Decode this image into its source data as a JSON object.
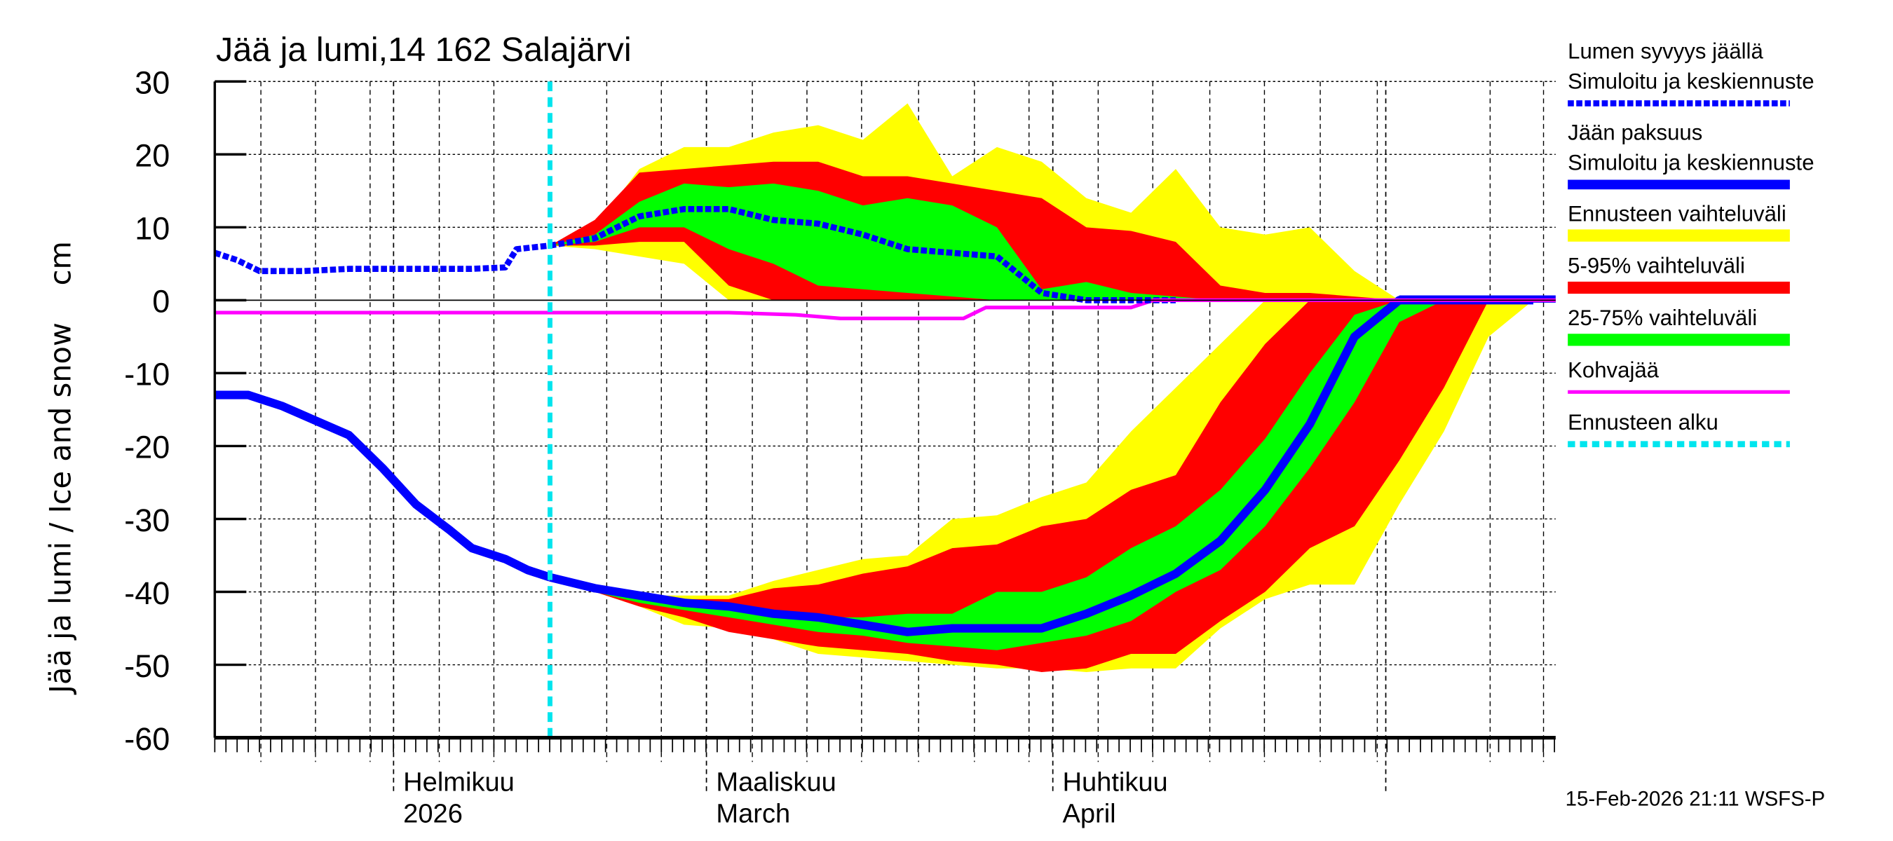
{
  "chart_data": {
    "type": "area",
    "title": "Jää ja lumi,14 162 Salajärvi",
    "ylabel": "Jää ja lumi / Ice and snow    cm",
    "ylim": [
      -60,
      30
    ],
    "yticks": [
      "30",
      "20",
      "10",
      "0",
      "-10",
      "-20",
      "-30",
      "-40",
      "-50",
      "-60"
    ],
    "xlim": [
      "2026-01-16",
      "2026-05-16"
    ],
    "x_month_labels": [
      {
        "date": "2026-02-01",
        "line1": "Helmikuu",
        "line2": "2026"
      },
      {
        "date": "2026-03-01",
        "line1": "Maaliskuu",
        "line2": "March"
      },
      {
        "date": "2026-04-01",
        "line1": "Huhtikuu",
        "line2": "April"
      }
    ],
    "grid": true,
    "legend_position": "right",
    "forecast_start": "2026-02-15",
    "forecast_dates": [
      "2026-02-15",
      "2026-02-19",
      "2026-02-23",
      "2026-02-27",
      "2026-03-03",
      "2026-03-07",
      "2026-03-11",
      "2026-03-15",
      "2026-03-19",
      "2026-03-23",
      "2026-03-27",
      "2026-03-31",
      "2026-04-04",
      "2026-04-08",
      "2026-04-12",
      "2026-04-16",
      "2026-04-20",
      "2026-04-24",
      "2026-04-28",
      "2026-05-02",
      "2026-05-06",
      "2026-05-10",
      "2026-05-14"
    ],
    "snow": {
      "history": {
        "x": [
          "2026-01-16",
          "2026-01-18",
          "2026-01-20",
          "2026-01-24",
          "2026-01-28",
          "2026-02-03",
          "2026-02-08",
          "2026-02-11",
          "2026-02-12",
          "2026-02-15"
        ],
        "y": [
          6.5,
          5.5,
          4,
          4,
          4.3,
          4.3,
          4.3,
          4.5,
          7,
          7.5
        ]
      },
      "median": [
        7.5,
        8.5,
        11.5,
        12.5,
        12.5,
        11,
        10.5,
        9,
        7,
        6.5,
        6,
        1,
        0,
        0,
        0,
        0,
        0,
        0,
        0,
        0,
        0,
        0,
        0
      ],
      "range_upper": [
        7.5,
        10,
        18,
        21,
        21,
        23,
        24,
        22,
        27,
        17,
        21,
        19,
        14,
        12,
        18,
        10,
        9,
        10,
        4,
        0,
        0,
        0,
        0
      ],
      "range_lower": [
        7.5,
        7,
        6,
        5,
        0,
        0,
        0,
        0,
        0,
        0,
        0,
        0,
        0,
        0,
        0,
        0,
        0,
        0,
        0,
        0,
        0,
        0,
        0
      ],
      "p95": [
        7.5,
        11,
        17.5,
        18,
        18.5,
        19,
        19,
        17,
        17,
        16,
        15,
        14,
        10,
        9.5,
        8,
        2,
        1,
        1,
        0.5,
        0,
        0,
        0,
        0
      ],
      "p5": [
        7.5,
        7.5,
        8,
        8,
        2,
        0,
        0,
        0,
        0,
        0,
        0,
        0,
        0,
        0,
        0,
        0,
        0,
        0,
        0,
        0,
        0,
        0,
        0
      ],
      "p75": [
        7.5,
        9,
        13.5,
        16,
        15.5,
        16,
        15,
        13,
        14,
        13,
        10,
        1.5,
        2.5,
        1,
        0.5,
        0,
        0,
        0,
        0,
        0,
        0,
        0,
        0
      ],
      "p25": [
        7.5,
        8,
        10,
        10,
        7,
        5,
        2,
        1.5,
        1,
        0.5,
        0,
        0,
        0,
        0,
        0,
        0,
        0,
        0,
        0,
        0,
        0,
        0,
        0
      ]
    },
    "ice": {
      "history": {
        "x": [
          "2026-01-16",
          "2026-01-19",
          "2026-01-22",
          "2026-01-25",
          "2026-01-28",
          "2026-01-31",
          "2026-02-03",
          "2026-02-06",
          "2026-02-08",
          "2026-02-11",
          "2026-02-13",
          "2026-02-15"
        ],
        "y": [
          -13,
          -13,
          -14.5,
          -16.5,
          -18.5,
          -23,
          -28,
          -31.5,
          -34,
          -35.5,
          -37,
          -38
        ]
      },
      "median": [
        -38,
        -39.5,
        -40.5,
        -41.5,
        -42,
        -43,
        -43.5,
        -44.5,
        -45.5,
        -45,
        -45,
        -45,
        -43,
        -40.5,
        -37.5,
        -33,
        -26,
        -17,
        -5,
        0,
        0,
        0,
        0
      ],
      "range_upper": [
        -38,
        -39.5,
        -40.5,
        -40.5,
        -40.5,
        -38.5,
        -37,
        -35.5,
        -35,
        -30,
        -29.5,
        -27,
        -25,
        -18,
        -12,
        -6,
        0,
        0,
        0,
        0,
        0,
        0,
        0
      ],
      "range_lower": [
        -38,
        -40,
        -42,
        -44.5,
        -45,
        -46.5,
        -48.5,
        -49,
        -49.5,
        -50,
        -50.5,
        -50.5,
        -51,
        -50.5,
        -50.5,
        -45,
        -41,
        -39,
        -39,
        -28,
        -18,
        -5,
        0
      ],
      "p95_upper": [
        -38,
        -39.5,
        -40.5,
        -41,
        -41,
        -39.5,
        -39,
        -37.5,
        -36.5,
        -34,
        -33.5,
        -31,
        -30,
        -26,
        -24,
        -14,
        -6,
        0,
        0,
        0,
        0,
        0,
        0
      ],
      "p5_lower": [
        -38,
        -40,
        -42,
        -43.5,
        -45.5,
        -46.5,
        -47.5,
        -48,
        -48.5,
        -49.5,
        -50,
        -51,
        -50.5,
        -48.5,
        -48.5,
        -44,
        -40,
        -34,
        -31,
        -22,
        -12,
        0,
        0
      ],
      "p75_upper": [
        -38,
        -39.5,
        -41,
        -42,
        -42.5,
        -43,
        -43.5,
        -43.5,
        -43,
        -43,
        -40,
        -40,
        -38,
        -34,
        -31,
        -26,
        -19,
        -10,
        -2,
        0,
        0,
        0,
        0
      ],
      "p25_lower": [
        -38,
        -40,
        -41.5,
        -42.5,
        -43.5,
        -44.5,
        -45.5,
        -46,
        -47,
        -47.5,
        -48,
        -47,
        -46,
        -44,
        -40,
        -37,
        -31,
        -23,
        -14,
        -3,
        0,
        0,
        0
      ]
    },
    "kohvajaa": {
      "x": [
        "2026-01-16",
        "2026-03-03",
        "2026-03-09",
        "2026-03-13",
        "2026-03-24",
        "2026-03-26",
        "2026-04-08",
        "2026-04-10",
        "2026-05-16"
      ],
      "y": [
        -1.7,
        -1.7,
        -2,
        -2.5,
        -2.5,
        -1,
        -1,
        0,
        0
      ]
    }
  },
  "colors": {
    "range": "#ffff00",
    "p5_95": "#ff0000",
    "p25_75": "#00ff00",
    "median": "#0000ff",
    "kohvajaa": "#ff00ff",
    "forecast_start": "#00e5ee"
  },
  "legend": [
    {
      "line1": "Lumen syvyys jäällä",
      "line2": "Simuloitu ja keskiennuste",
      "style": "dashed-blue"
    },
    {
      "line1": "Jään paksuus",
      "line2": "Simuloitu ja keskiennuste",
      "style": "solid-blue"
    },
    {
      "line1": "Ennusteen vaihteluväli",
      "style": "yellow-bar"
    },
    {
      "line1": "5-95% vaihteluväli",
      "style": "red-bar"
    },
    {
      "line1": "25-75% vaihteluväli",
      "style": "green-bar"
    },
    {
      "line1": "Kohvajää",
      "style": "magenta-line"
    },
    {
      "line1": "Ennusteen alku",
      "style": "cyan-dashed"
    }
  ],
  "footer": "15-Feb-2026 21:11 WSFS-P"
}
